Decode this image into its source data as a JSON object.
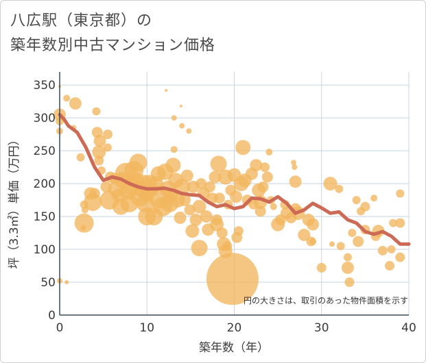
{
  "title_line1": "八広駅（東京都）の",
  "title_line2": "築年数別中古マンション価格",
  "colors": {
    "bubble": "#F2B65E",
    "line": "#CC6A55",
    "grid": "#c9d3e0",
    "axis": "#3a4a5a"
  },
  "chart_data": {
    "type": "scatter",
    "title": "八広駅（東京都）の 築年数別中古マンション価格",
    "xlabel": "築年数（年）",
    "ylabel": "坪（3.3㎡）単価（万円）",
    "xlim": [
      0,
      40
    ],
    "ylim": [
      0,
      370
    ],
    "x_ticks": [
      0,
      10,
      20,
      30,
      40
    ],
    "y_ticks": [
      0,
      50,
      100,
      150,
      200,
      250,
      300,
      350
    ],
    "note": "円の大きさは、取引のあった物件面積を示す",
    "grid": true,
    "series": [
      {
        "kind": "line",
        "x": [
          0,
          0.5,
          1,
          2,
          3,
          4,
          5,
          6,
          7,
          8,
          9,
          10,
          11,
          12,
          13,
          14,
          15,
          16,
          17,
          18,
          19,
          20,
          21,
          22,
          23,
          24,
          25,
          26,
          27,
          28,
          29,
          30,
          31,
          32,
          33,
          34,
          35,
          36,
          37,
          38,
          39,
          40
        ],
        "y": [
          305,
          298,
          288,
          278,
          255,
          225,
          205,
          210,
          207,
          200,
          195,
          192,
          192,
          193,
          190,
          185,
          183,
          182,
          172,
          165,
          168,
          162,
          165,
          178,
          177,
          172,
          180,
          170,
          155,
          160,
          170,
          163,
          155,
          157,
          145,
          140,
          127,
          123,
          127,
          120,
          108,
          108
        ]
      },
      {
        "kind": "bubble",
        "points": [
          {
            "x": 0,
            "y": 348,
            "s": 2
          },
          {
            "x": 0,
            "y": 305,
            "s": 9
          },
          {
            "x": 0,
            "y": 295,
            "s": 6
          },
          {
            "x": 0,
            "y": 280,
            "s": 5
          },
          {
            "x": 0,
            "y": 52,
            "s": 4
          },
          {
            "x": 0.8,
            "y": 330,
            "s": 5
          },
          {
            "x": 0.8,
            "y": 50,
            "s": 3
          },
          {
            "x": 1.8,
            "y": 322,
            "s": 9
          },
          {
            "x": 1.6,
            "y": 285,
            "s": 4
          },
          {
            "x": 2.4,
            "y": 240,
            "s": 6
          },
          {
            "x": 2.8,
            "y": 168,
            "s": 6
          },
          {
            "x": 2.9,
            "y": 160,
            "s": 5
          },
          {
            "x": 2.8,
            "y": 140,
            "s": 14
          },
          {
            "x": 2.7,
            "y": 133,
            "s": 4
          },
          {
            "x": 3.5,
            "y": 185,
            "s": 9
          },
          {
            "x": 3.8,
            "y": 172,
            "s": 13
          },
          {
            "x": 4.0,
            "y": 185,
            "s": 8
          },
          {
            "x": 4.2,
            "y": 310,
            "s": 6
          },
          {
            "x": 4.3,
            "y": 278,
            "s": 8
          },
          {
            "x": 4.6,
            "y": 265,
            "s": 9
          },
          {
            "x": 4.5,
            "y": 248,
            "s": 10
          },
          {
            "x": 4.5,
            "y": 235,
            "s": 7
          },
          {
            "x": 4.8,
            "y": 220,
            "s": 6
          },
          {
            "x": 5.5,
            "y": 275,
            "s": 7
          },
          {
            "x": 5.5,
            "y": 255,
            "s": 6
          },
          {
            "x": 5.3,
            "y": 195,
            "s": 8
          },
          {
            "x": 5.7,
            "y": 175,
            "s": 14
          },
          {
            "x": 5.8,
            "y": 210,
            "s": 8
          },
          {
            "x": 6.3,
            "y": 208,
            "s": 8
          },
          {
            "x": 6.5,
            "y": 192,
            "s": 12
          },
          {
            "x": 6.8,
            "y": 182,
            "s": 10
          },
          {
            "x": 7.0,
            "y": 165,
            "s": 12
          },
          {
            "x": 7.2,
            "y": 205,
            "s": 12
          },
          {
            "x": 7.6,
            "y": 215,
            "s": 16
          },
          {
            "x": 7.8,
            "y": 188,
            "s": 12
          },
          {
            "x": 8.0,
            "y": 170,
            "s": 13
          },
          {
            "x": 8.2,
            "y": 195,
            "s": 12
          },
          {
            "x": 8.5,
            "y": 220,
            "s": 14
          },
          {
            "x": 8.8,
            "y": 205,
            "s": 11
          },
          {
            "x": 9.0,
            "y": 232,
            "s": 13
          },
          {
            "x": 9.2,
            "y": 180,
            "s": 14
          },
          {
            "x": 9.3,
            "y": 192,
            "s": 12
          },
          {
            "x": 9.6,
            "y": 200,
            "s": 13
          },
          {
            "x": 9.8,
            "y": 170,
            "s": 13
          },
          {
            "x": 10.0,
            "y": 150,
            "s": 13
          },
          {
            "x": 10.0,
            "y": 182,
            "s": 10
          },
          {
            "x": 10.3,
            "y": 202,
            "s": 11
          },
          {
            "x": 10.6,
            "y": 190,
            "s": 9
          },
          {
            "x": 10.8,
            "y": 150,
            "s": 13
          },
          {
            "x": 11.0,
            "y": 200,
            "s": 11
          },
          {
            "x": 11.3,
            "y": 215,
            "s": 11
          },
          {
            "x": 11.5,
            "y": 180,
            "s": 17
          },
          {
            "x": 11.8,
            "y": 165,
            "s": 14
          },
          {
            "x": 12.1,
            "y": 218,
            "s": 12
          },
          {
            "x": 12.2,
            "y": 342,
            "s": 2
          },
          {
            "x": 12.4,
            "y": 192,
            "s": 12
          },
          {
            "x": 12.6,
            "y": 170,
            "s": 13
          },
          {
            "x": 12.8,
            "y": 183,
            "s": 10
          },
          {
            "x": 13.0,
            "y": 228,
            "s": 11
          },
          {
            "x": 13.1,
            "y": 300,
            "s": 4
          },
          {
            "x": 13.1,
            "y": 252,
            "s": 5
          },
          {
            "x": 13.3,
            "y": 205,
            "s": 11
          },
          {
            "x": 13.5,
            "y": 175,
            "s": 11
          },
          {
            "x": 13.8,
            "y": 148,
            "s": 9
          },
          {
            "x": 13.9,
            "y": 318,
            "s": 2
          },
          {
            "x": 14.0,
            "y": 288,
            "s": 4
          },
          {
            "x": 14.0,
            "y": 195,
            "s": 12
          },
          {
            "x": 14.3,
            "y": 175,
            "s": 9
          },
          {
            "x": 14.6,
            "y": 212,
            "s": 9
          },
          {
            "x": 14.8,
            "y": 280,
            "s": 4
          },
          {
            "x": 14.9,
            "y": 160,
            "s": 8
          },
          {
            "x": 15.2,
            "y": 128,
            "s": 10
          },
          {
            "x": 15.3,
            "y": 195,
            "s": 9
          },
          {
            "x": 15.6,
            "y": 145,
            "s": 9
          },
          {
            "x": 16.0,
            "y": 165,
            "s": 10
          },
          {
            "x": 16.0,
            "y": 102,
            "s": 12
          },
          {
            "x": 16.2,
            "y": 200,
            "s": 8
          },
          {
            "x": 16.5,
            "y": 185,
            "s": 9
          },
          {
            "x": 16.8,
            "y": 150,
            "s": 9
          },
          {
            "x": 17.0,
            "y": 130,
            "s": 9
          },
          {
            "x": 17.2,
            "y": 195,
            "s": 8
          },
          {
            "x": 17.5,
            "y": 178,
            "s": 8
          },
          {
            "x": 17.8,
            "y": 210,
            "s": 9
          },
          {
            "x": 18.0,
            "y": 138,
            "s": 10
          },
          {
            "x": 18.0,
            "y": 145,
            "s": 8
          },
          {
            "x": 18.2,
            "y": 230,
            "s": 12
          },
          {
            "x": 18.3,
            "y": 178,
            "s": 8
          },
          {
            "x": 18.6,
            "y": 125,
            "s": 8
          },
          {
            "x": 18.8,
            "y": 108,
            "s": 10
          },
          {
            "x": 19.0,
            "y": 210,
            "s": 11
          },
          {
            "x": 19.0,
            "y": 97,
            "s": 10
          },
          {
            "x": 19.2,
            "y": 105,
            "s": 7
          },
          {
            "x": 19.3,
            "y": 168,
            "s": 7
          },
          {
            "x": 19.6,
            "y": 190,
            "s": 8
          },
          {
            "x": 19.8,
            "y": 55,
            "s": 38
          },
          {
            "x": 20.0,
            "y": 213,
            "s": 10
          },
          {
            "x": 20.2,
            "y": 180,
            "s": 9
          },
          {
            "x": 20.3,
            "y": 118,
            "s": 8
          },
          {
            "x": 20.5,
            "y": 128,
            "s": 7
          },
          {
            "x": 20.8,
            "y": 200,
            "s": 11
          },
          {
            "x": 21.0,
            "y": 255,
            "s": 11
          },
          {
            "x": 21.2,
            "y": 205,
            "s": 10
          },
          {
            "x": 21.5,
            "y": 175,
            "s": 8
          },
          {
            "x": 22.0,
            "y": 215,
            "s": 9
          },
          {
            "x": 22.2,
            "y": 168,
            "s": 7
          },
          {
            "x": 22.5,
            "y": 228,
            "s": 9
          },
          {
            "x": 22.8,
            "y": 190,
            "s": 10
          },
          {
            "x": 23.0,
            "y": 172,
            "s": 10
          },
          {
            "x": 23.0,
            "y": 158,
            "s": 8
          },
          {
            "x": 23.3,
            "y": 195,
            "s": 8
          },
          {
            "x": 23.5,
            "y": 225,
            "s": 7
          },
          {
            "x": 23.8,
            "y": 210,
            "s": 8
          },
          {
            "x": 24.0,
            "y": 248,
            "s": 5
          },
          {
            "x": 24.2,
            "y": 175,
            "s": 6
          },
          {
            "x": 24.5,
            "y": 165,
            "s": 5
          },
          {
            "x": 25.0,
            "y": 138,
            "s": 10
          },
          {
            "x": 25.3,
            "y": 145,
            "s": 8
          },
          {
            "x": 25.8,
            "y": 168,
            "s": 7
          },
          {
            "x": 26.0,
            "y": 155,
            "s": 9
          },
          {
            "x": 26.5,
            "y": 148,
            "s": 8
          },
          {
            "x": 26.8,
            "y": 232,
            "s": 4
          },
          {
            "x": 26.9,
            "y": 225,
            "s": 4
          },
          {
            "x": 27.0,
            "y": 203,
            "s": 9
          },
          {
            "x": 27.0,
            "y": 162,
            "s": 8
          },
          {
            "x": 27.3,
            "y": 155,
            "s": 10
          },
          {
            "x": 28.0,
            "y": 122,
            "s": 9
          },
          {
            "x": 28.5,
            "y": 145,
            "s": 9
          },
          {
            "x": 28.8,
            "y": 112,
            "s": 7
          },
          {
            "x": 29.0,
            "y": 138,
            "s": 9
          },
          {
            "x": 29.0,
            "y": 112,
            "s": 5
          },
          {
            "x": 30.0,
            "y": 72,
            "s": 7
          },
          {
            "x": 31.0,
            "y": 200,
            "s": 10
          },
          {
            "x": 31.2,
            "y": 108,
            "s": 4
          },
          {
            "x": 32.0,
            "y": 192,
            "s": 6
          },
          {
            "x": 32.2,
            "y": 105,
            "s": 6
          },
          {
            "x": 33.0,
            "y": 88,
            "s": 6
          },
          {
            "x": 33.0,
            "y": 72,
            "s": 9
          },
          {
            "x": 33.2,
            "y": 50,
            "s": 7
          },
          {
            "x": 33.5,
            "y": 125,
            "s": 6
          },
          {
            "x": 34.0,
            "y": 175,
            "s": 6
          },
          {
            "x": 34.2,
            "y": 112,
            "s": 8
          },
          {
            "x": 34.5,
            "y": 158,
            "s": 6
          },
          {
            "x": 35.0,
            "y": 165,
            "s": 7
          },
          {
            "x": 35.0,
            "y": 130,
            "s": 7
          },
          {
            "x": 36.0,
            "y": 178,
            "s": 5
          },
          {
            "x": 36.2,
            "y": 120,
            "s": 7
          },
          {
            "x": 36.5,
            "y": 128,
            "s": 9
          },
          {
            "x": 37.0,
            "y": 98,
            "s": 7
          },
          {
            "x": 37.8,
            "y": 75,
            "s": 7
          },
          {
            "x": 38.0,
            "y": 100,
            "s": 6
          },
          {
            "x": 38.2,
            "y": 140,
            "s": 6
          },
          {
            "x": 39.0,
            "y": 185,
            "s": 6
          },
          {
            "x": 39.0,
            "y": 140,
            "s": 7
          },
          {
            "x": 39.0,
            "y": 88,
            "s": 7
          }
        ]
      }
    ]
  }
}
